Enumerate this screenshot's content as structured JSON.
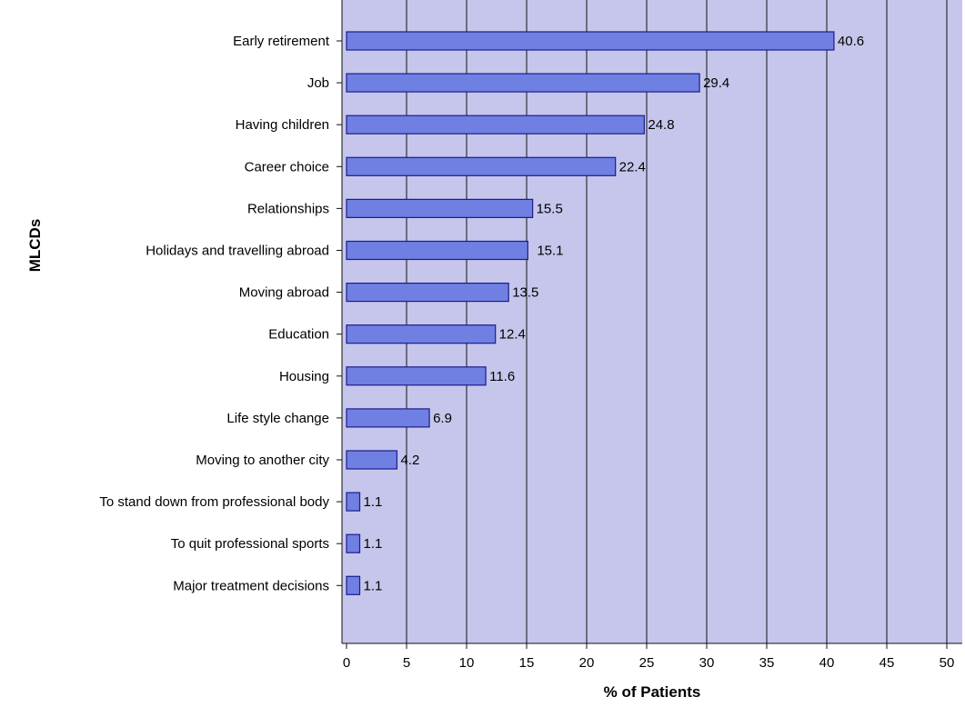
{
  "chart_data": {
    "type": "bar",
    "orientation": "horizontal",
    "title": "",
    "xlabel": "% of Patients",
    "ylabel": "MLCDs",
    "categories": [
      "Early retirement",
      "Job",
      "Having children",
      "Career choice",
      "Relationships",
      "Holidays and travelling abroad",
      "Moving abroad",
      "Education",
      "Housing",
      "Life style change",
      "Moving to another city",
      "To stand down from professional body",
      "To quit professional sports",
      "Major treatment decisions"
    ],
    "values": [
      40.6,
      29.4,
      24.8,
      22.4,
      15.5,
      15.1,
      13.5,
      12.4,
      11.6,
      6.9,
      4.2,
      1.1,
      1.1,
      1.1
    ],
    "value_labels": [
      "40.6",
      "29.4",
      "24.8",
      "22.4",
      "15.5",
      "15.1",
      "13.5",
      "12.4",
      "11.6",
      "6.9",
      "4.2",
      "1.1",
      "1.1",
      "1.1"
    ],
    "xlim": [
      0,
      50
    ],
    "xticks": [
      0,
      5,
      10,
      15,
      20,
      25,
      30,
      35,
      40,
      45,
      50
    ],
    "grid": "vertical",
    "legend": "none",
    "colors": {
      "bar": "#6f7fe2",
      "bar_edge": "#1c1c8c",
      "plot_background": "#c6c6ec",
      "grid": "#111111"
    }
  }
}
